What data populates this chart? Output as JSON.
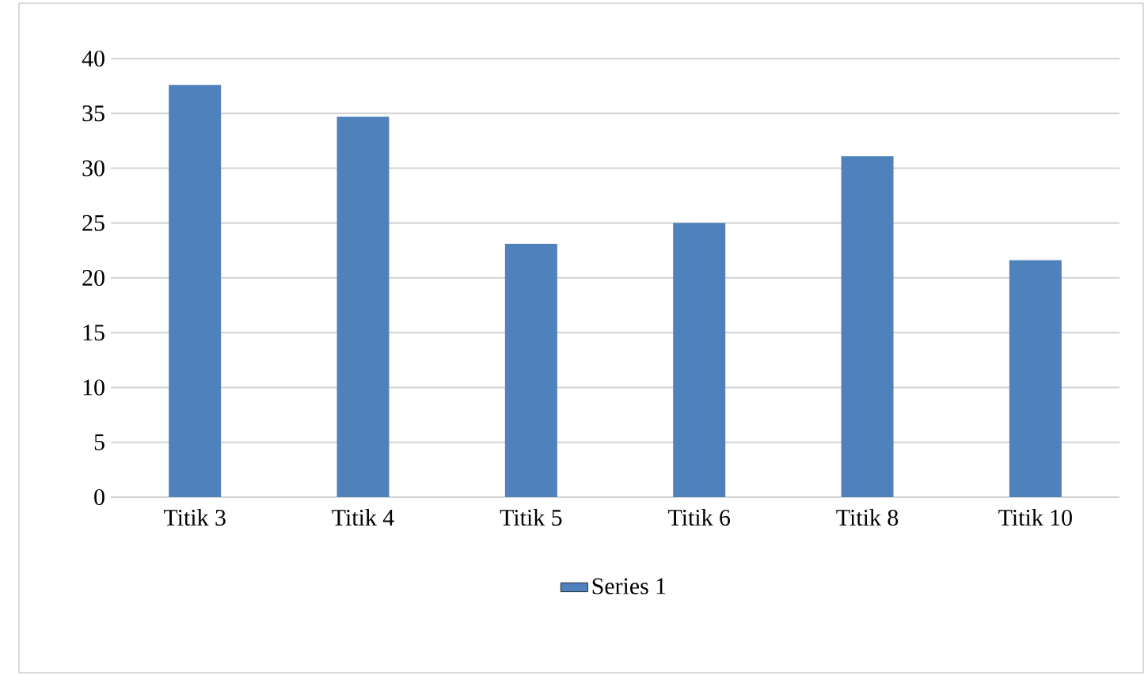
{
  "chart_data": {
    "type": "bar",
    "categories": [
      "Titik 3",
      "Titik 4",
      "Titik 5",
      "Titik 6",
      "Titik 8",
      "Titik 10"
    ],
    "series": [
      {
        "name": "Series 1",
        "color": "#4f81bd",
        "values": [
          37.6,
          34.7,
          23.1,
          25.0,
          31.1,
          21.6
        ]
      }
    ],
    "ylim": [
      0,
      40
    ],
    "yticks": [
      0,
      5,
      10,
      15,
      20,
      25,
      30,
      35,
      40
    ],
    "grid": "y",
    "legend": "bottom"
  }
}
